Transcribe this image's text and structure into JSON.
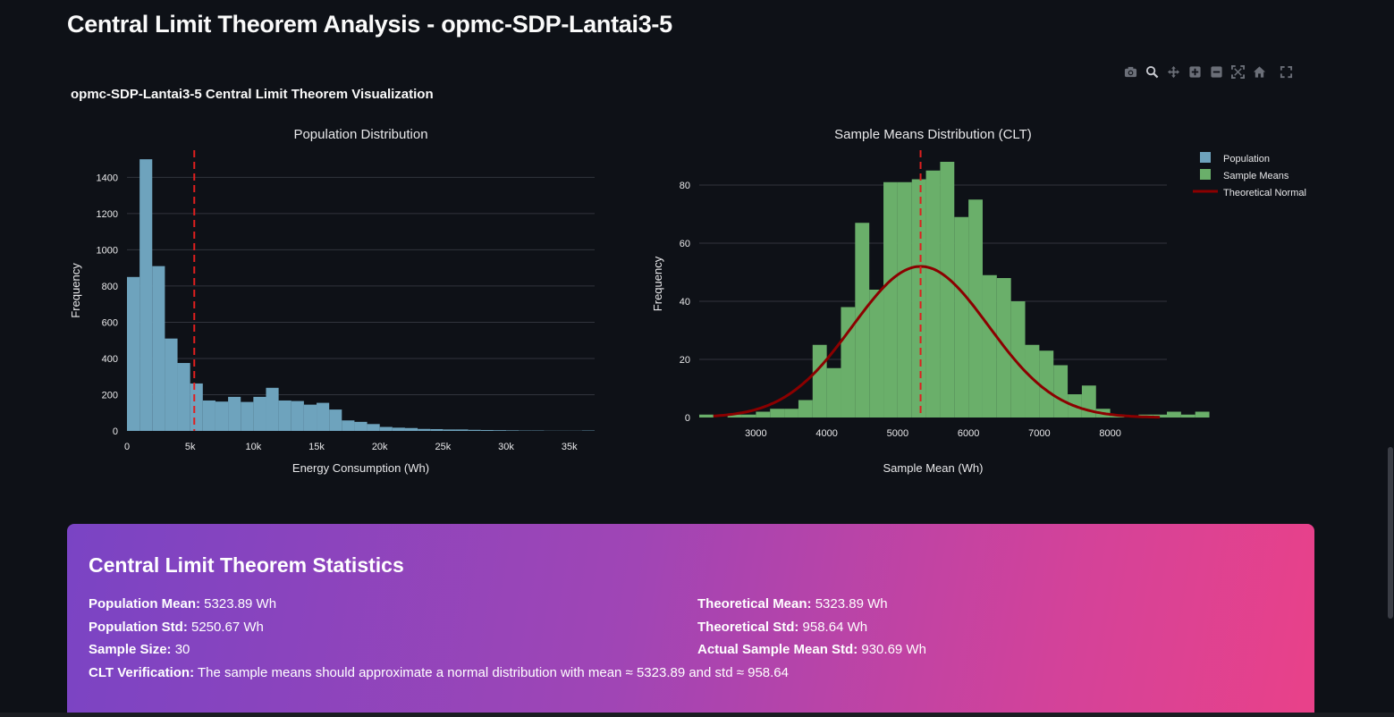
{
  "page": {
    "title": "Central Limit Theorem Analysis - opmc-SDP-Lantai3-5",
    "figure_title": "opmc-SDP-Lantai3-5 Central Limit Theorem Visualization"
  },
  "modebar": [
    "camera-icon",
    "zoom-icon",
    "pan-icon",
    "zoom-in-icon",
    "zoom-out-icon",
    "autoscale-icon",
    "reset-axes-icon",
    "fullscreen-icon"
  ],
  "chart_data": [
    {
      "type": "bar",
      "title": "Population Distribution",
      "xlabel": "Energy Consumption (Wh)",
      "ylabel": "Frequency",
      "series_name": "Population",
      "color": "#6ea3bd",
      "bin_start": 0,
      "bin_width": 1000,
      "values": [
        850,
        1500,
        910,
        510,
        375,
        262,
        168,
        162,
        188,
        160,
        188,
        238,
        168,
        165,
        145,
        155,
        118,
        58,
        50,
        38,
        22,
        18,
        16,
        11,
        10,
        8,
        8,
        6,
        5,
        4,
        3,
        2,
        2,
        1,
        1,
        1,
        2
      ],
      "xlim": [
        0,
        37000
      ],
      "ylim": [
        0,
        1550
      ],
      "xticks": [
        0,
        5000,
        10000,
        15000,
        20000,
        25000,
        30000,
        35000
      ],
      "xtick_labels": [
        "0",
        "5k",
        "10k",
        "15k",
        "20k",
        "25k",
        "30k",
        "35k"
      ],
      "yticks": [
        0,
        200,
        400,
        600,
        800,
        1000,
        1200,
        1400
      ],
      "mean_line": 5323.89
    },
    {
      "type": "bar",
      "title": "Sample Means Distribution (CLT)",
      "xlabel": "Sample Mean (Wh)",
      "ylabel": "Frequency",
      "series_name": "Sample Means",
      "color": "#6aaf6a",
      "bin_start": 2200,
      "bin_width": 200,
      "values": [
        1,
        0,
        1,
        1,
        2,
        3,
        3,
        6,
        25,
        17,
        38,
        67,
        44,
        81,
        81,
        82,
        85,
        88,
        69,
        75,
        49,
        48,
        40,
        25,
        23,
        18,
        8,
        11,
        3,
        1,
        0,
        1,
        1,
        2,
        1,
        2
      ],
      "xlim": [
        2200,
        8800
      ],
      "ylim": [
        0,
        92
      ],
      "xticks": [
        3000,
        4000,
        5000,
        6000,
        7000,
        8000
      ],
      "yticks": [
        0,
        20,
        40,
        60,
        80
      ],
      "mean_line": 5323.89,
      "normal_curve": {
        "name": "Theoretical Normal",
        "mean": 5323.89,
        "std": 958.64,
        "peak": 52,
        "color": "#8b0000",
        "x_range": [
          2400,
          8700
        ]
      }
    }
  ],
  "legend": [
    {
      "label": "Population",
      "color": "#6ea3bd",
      "kind": "box"
    },
    {
      "label": "Sample Means",
      "color": "#6aaf6a",
      "kind": "box"
    },
    {
      "label": "Theoretical Normal",
      "color": "#8b0000",
      "kind": "line"
    }
  ],
  "stats": {
    "heading": "Central Limit Theorem Statistics",
    "population_mean_label": "Population Mean:",
    "population_mean": "5323.89 Wh",
    "population_std_label": "Population Std:",
    "population_std": "5250.67 Wh",
    "sample_size_label": "Sample Size:",
    "sample_size": "30",
    "clt_label": "CLT Verification:",
    "clt_text": "The sample means should approximate a normal distribution with mean ≈ 5323.89 and std ≈ 958.64",
    "theoretical_mean_label": "Theoretical Mean:",
    "theoretical_mean": "5323.89 Wh",
    "theoretical_std_label": "Theoretical Std:",
    "theoretical_std": "958.64 Wh",
    "actual_std_label": "Actual Sample Mean Std:",
    "actual_std": "930.69 Wh"
  }
}
